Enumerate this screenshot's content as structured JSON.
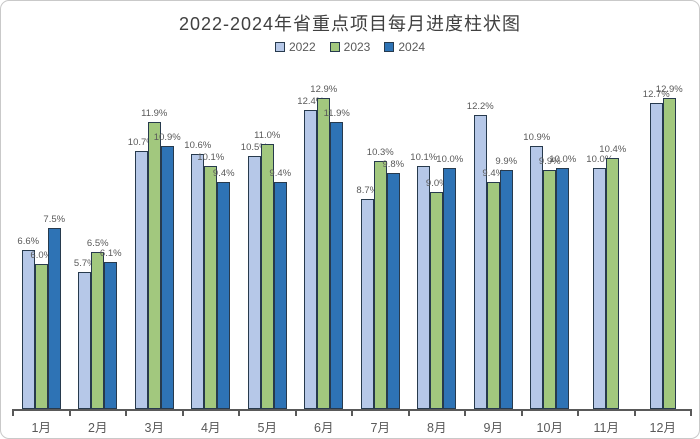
{
  "chart_data": {
    "type": "bar",
    "title": "2022-2024年省重点项目每月进度柱状图",
    "categories": [
      "1月",
      "2月",
      "3月",
      "4月",
      "5月",
      "6月",
      "7月",
      "8月",
      "9月",
      "10月",
      "11月",
      "12月"
    ],
    "series": [
      {
        "name": "2022",
        "color": "#b6c8e8",
        "values": [
          6.6,
          5.7,
          10.7,
          10.6,
          10.5,
          12.4,
          8.7,
          10.1,
          12.2,
          10.9,
          10.0,
          12.7
        ]
      },
      {
        "name": "2023",
        "color": "#a2c87e",
        "values": [
          6.0,
          6.5,
          11.9,
          10.1,
          11.0,
          12.9,
          10.3,
          9.0,
          9.4,
          9.9,
          10.4,
          12.9
        ]
      },
      {
        "name": "2024",
        "color": "#2e73b5",
        "values": [
          7.5,
          6.1,
          10.9,
          9.4,
          9.4,
          11.9,
          9.8,
          10.0,
          9.9,
          10.0,
          null,
          null
        ]
      }
    ],
    "label_format": "{value}%",
    "ylim": [
      0,
      14
    ],
    "grid": false,
    "y_axis_visible": false,
    "legend_position": "top",
    "colors": {
      "bar_border": "#273a4d",
      "axis": "#595959",
      "data_label": "#595959",
      "category_label": "#595959",
      "title": "#404040",
      "frame_border": "#c9c9c9",
      "background": "#ffffff"
    }
  }
}
